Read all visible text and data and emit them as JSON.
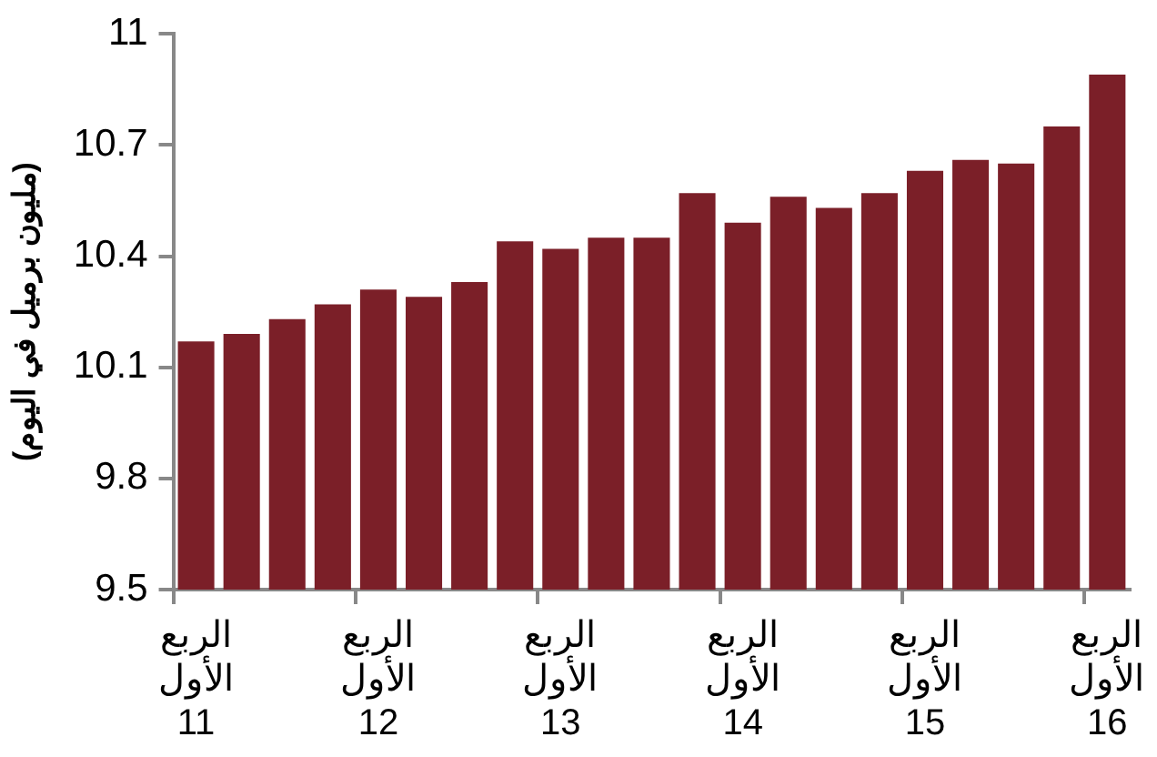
{
  "chart_data": {
    "type": "bar",
    "ylabel": "(مليون برميل في اليوم)",
    "categories": [
      "الربع الأول 11",
      null,
      null,
      null,
      "الربع الأول 12",
      null,
      null,
      null,
      "الربع الأول 13",
      null,
      null,
      null,
      "الربع الأول 14",
      null,
      null,
      null,
      "الربع الأول 15",
      null,
      null,
      null,
      "الربع الأول 16"
    ],
    "values": [
      10.17,
      10.19,
      10.23,
      10.27,
      10.31,
      10.29,
      10.33,
      10.44,
      10.42,
      10.45,
      10.45,
      10.57,
      10.49,
      10.56,
      10.53,
      10.57,
      10.63,
      10.66,
      10.65,
      10.75,
      10.89
    ],
    "color": "#7b1f28",
    "ylim": [
      9.5,
      11
    ],
    "yticks": [
      9.5,
      9.8,
      10.1,
      10.4,
      10.7,
      11
    ],
    "grid": false,
    "legend": false
  }
}
